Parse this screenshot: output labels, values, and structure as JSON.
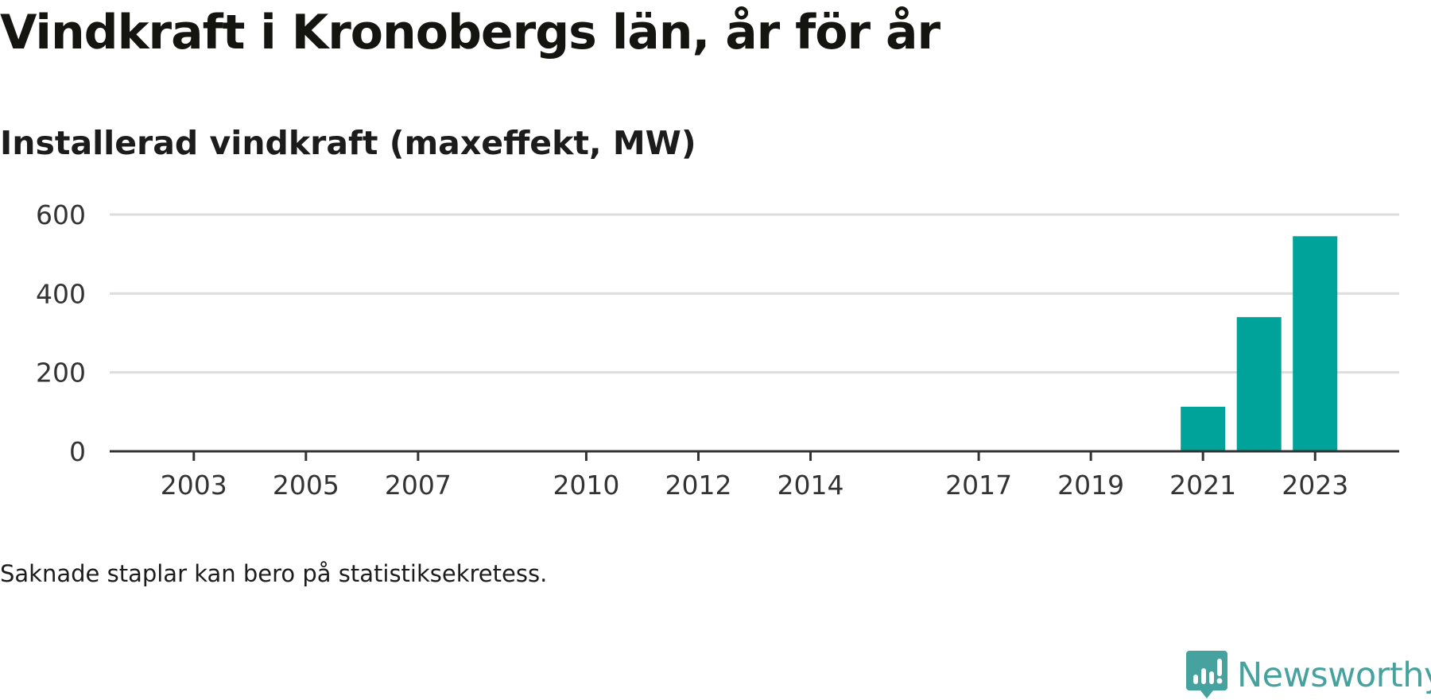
{
  "title": "Vindkraft i Kronobergs län, år för år",
  "subtitle": "Installerad vindkraft (maxeffekt, MW)",
  "note": "Saknade staplar kan bero på statistiksekretess.",
  "brand": {
    "name": "Newsworthy",
    "icon": "newsworthy-logo-icon",
    "color": "#45a29e"
  },
  "chart_data": {
    "type": "bar",
    "title": "Vindkraft i Kronobergs län, år för år",
    "ylabel": "Installerad vindkraft (maxeffekt, MW)",
    "xlabel": "",
    "x": [
      2021,
      2022,
      2023
    ],
    "values": [
      113,
      340,
      545
    ],
    "x_range": [
      2001.5,
      2024.5
    ],
    "x_ticks": [
      2003,
      2005,
      2007,
      2010,
      2012,
      2014,
      2017,
      2019,
      2021,
      2023
    ],
    "ylim": [
      0,
      600
    ],
    "y_ticks": [
      0,
      200,
      400,
      600
    ],
    "grid": true,
    "bar_color": "#00a39a",
    "legend": "none"
  }
}
